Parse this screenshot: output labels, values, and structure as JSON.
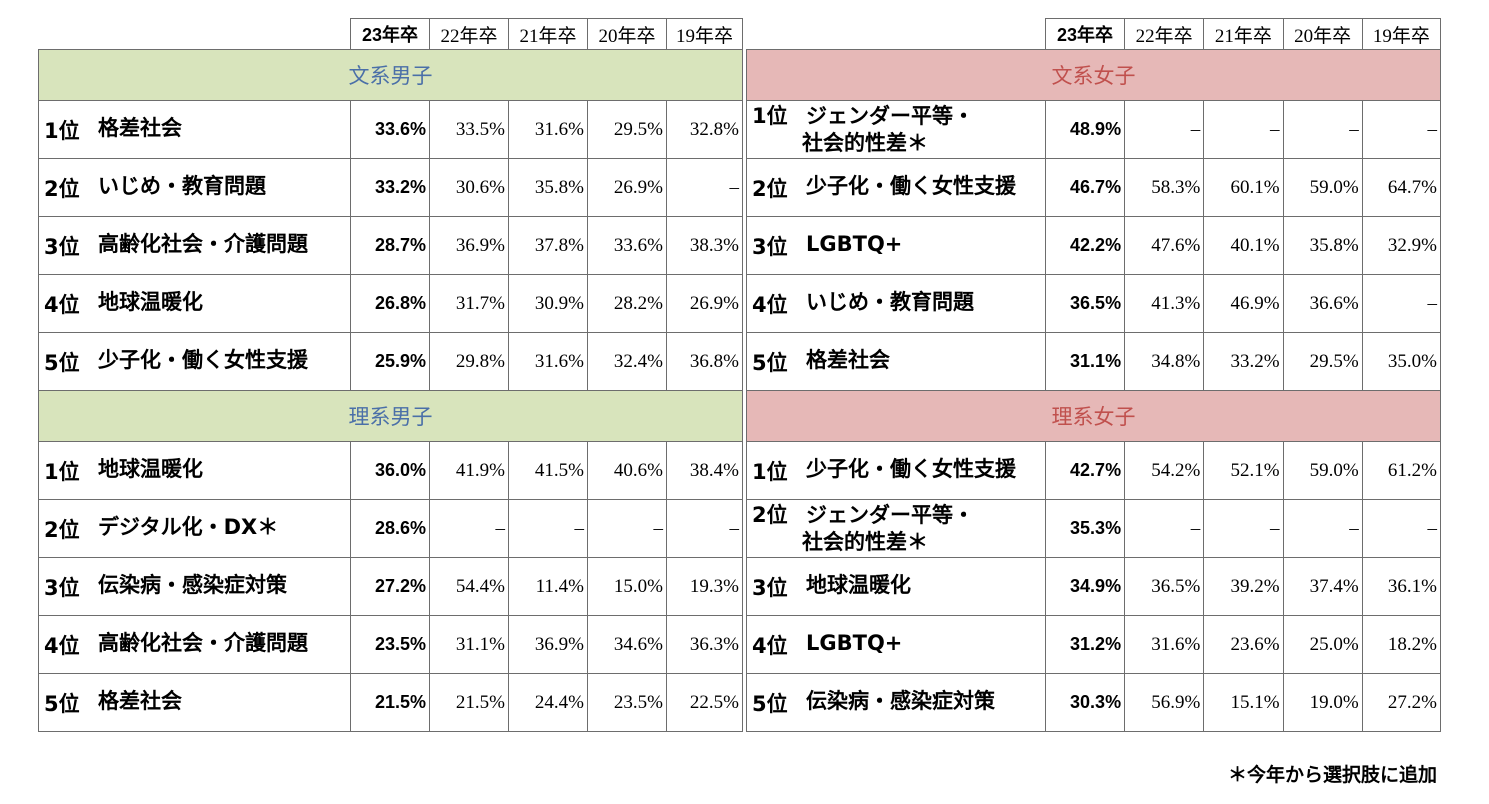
{
  "years": [
    "23年卒",
    "22年卒",
    "21年卒",
    "20年卒",
    "19年卒"
  ],
  "left": {
    "sections": [
      {
        "title": "文系男子",
        "rows": [
          {
            "rank": "1位",
            "label": "格差社会",
            "values": [
              "33.6%",
              "33.5%",
              "31.6%",
              "29.5%",
              "32.8%"
            ]
          },
          {
            "rank": "2位",
            "label": "いじめ・教育問題",
            "values": [
              "33.2%",
              "30.6%",
              "35.8%",
              "26.9%",
              "–"
            ]
          },
          {
            "rank": "3位",
            "label": "高齢化社会・介護問題",
            "values": [
              "28.7%",
              "36.9%",
              "37.8%",
              "33.6%",
              "38.3%"
            ]
          },
          {
            "rank": "4位",
            "label": "地球温暖化",
            "values": [
              "26.8%",
              "31.7%",
              "30.9%",
              "28.2%",
              "26.9%"
            ]
          },
          {
            "rank": "5位",
            "label": "少子化・働く女性支援",
            "values": [
              "25.9%",
              "29.8%",
              "31.6%",
              "32.4%",
              "36.8%"
            ]
          }
        ]
      },
      {
        "title": "理系男子",
        "rows": [
          {
            "rank": "1位",
            "label": "地球温暖化",
            "values": [
              "36.0%",
              "41.9%",
              "41.5%",
              "40.6%",
              "38.4%"
            ]
          },
          {
            "rank": "2位",
            "label": "デジタル化・DX＊",
            "values": [
              "28.6%",
              "–",
              "–",
              "–",
              "–"
            ]
          },
          {
            "rank": "3位",
            "label": "伝染病・感染症対策",
            "values": [
              "27.2%",
              "54.4%",
              "11.4%",
              "15.0%",
              "19.3%"
            ]
          },
          {
            "rank": "4位",
            "label": "高齢化社会・介護問題",
            "values": [
              "23.5%",
              "31.1%",
              "36.9%",
              "34.6%",
              "36.3%"
            ]
          },
          {
            "rank": "5位",
            "label": "格差社会",
            "values": [
              "21.5%",
              "21.5%",
              "24.4%",
              "23.5%",
              "22.5%"
            ]
          }
        ]
      }
    ]
  },
  "right": {
    "sections": [
      {
        "title": "文系女子",
        "rows": [
          {
            "rank": "1位",
            "label": "ジェンダー平等・\n社会的性差＊",
            "values": [
              "48.9%",
              "–",
              "–",
              "–",
              "–"
            ]
          },
          {
            "rank": "2位",
            "label": "少子化・働く女性支援",
            "values": [
              "46.7%",
              "58.3%",
              "60.1%",
              "59.0%",
              "64.7%"
            ]
          },
          {
            "rank": "3位",
            "label": "LGBTQ+",
            "values": [
              "42.2%",
              "47.6%",
              "40.1%",
              "35.8%",
              "32.9%"
            ]
          },
          {
            "rank": "4位",
            "label": "いじめ・教育問題",
            "values": [
              "36.5%",
              "41.3%",
              "46.9%",
              "36.6%",
              "–"
            ]
          },
          {
            "rank": "5位",
            "label": "格差社会",
            "values": [
              "31.1%",
              "34.8%",
              "33.2%",
              "29.5%",
              "35.0%"
            ]
          }
        ]
      },
      {
        "title": "理系女子",
        "rows": [
          {
            "rank": "1位",
            "label": "少子化・働く女性支援",
            "values": [
              "42.7%",
              "54.2%",
              "52.1%",
              "59.0%",
              "61.2%"
            ]
          },
          {
            "rank": "2位",
            "label": "ジェンダー平等・\n社会的性差＊",
            "values": [
              "35.3%",
              "–",
              "–",
              "–",
              "–"
            ]
          },
          {
            "rank": "3位",
            "label": "地球温暖化",
            "values": [
              "34.9%",
              "36.5%",
              "39.2%",
              "37.4%",
              "36.1%"
            ]
          },
          {
            "rank": "4位",
            "label": "LGBTQ+",
            "values": [
              "31.2%",
              "31.6%",
              "23.6%",
              "25.0%",
              "18.2%"
            ]
          },
          {
            "rank": "5位",
            "label": "伝染病・感染症対策",
            "values": [
              "30.3%",
              "56.9%",
              "15.1%",
              "19.0%",
              "27.2%"
            ]
          }
        ]
      }
    ]
  },
  "footnote": "＊今年から選択肢に追加",
  "colors": {
    "male_group_bg": "#d8e4bc",
    "male_group_text": "#4a6fa8",
    "female_group_bg": "#e6b8b7",
    "female_group_text": "#c0504d"
  }
}
